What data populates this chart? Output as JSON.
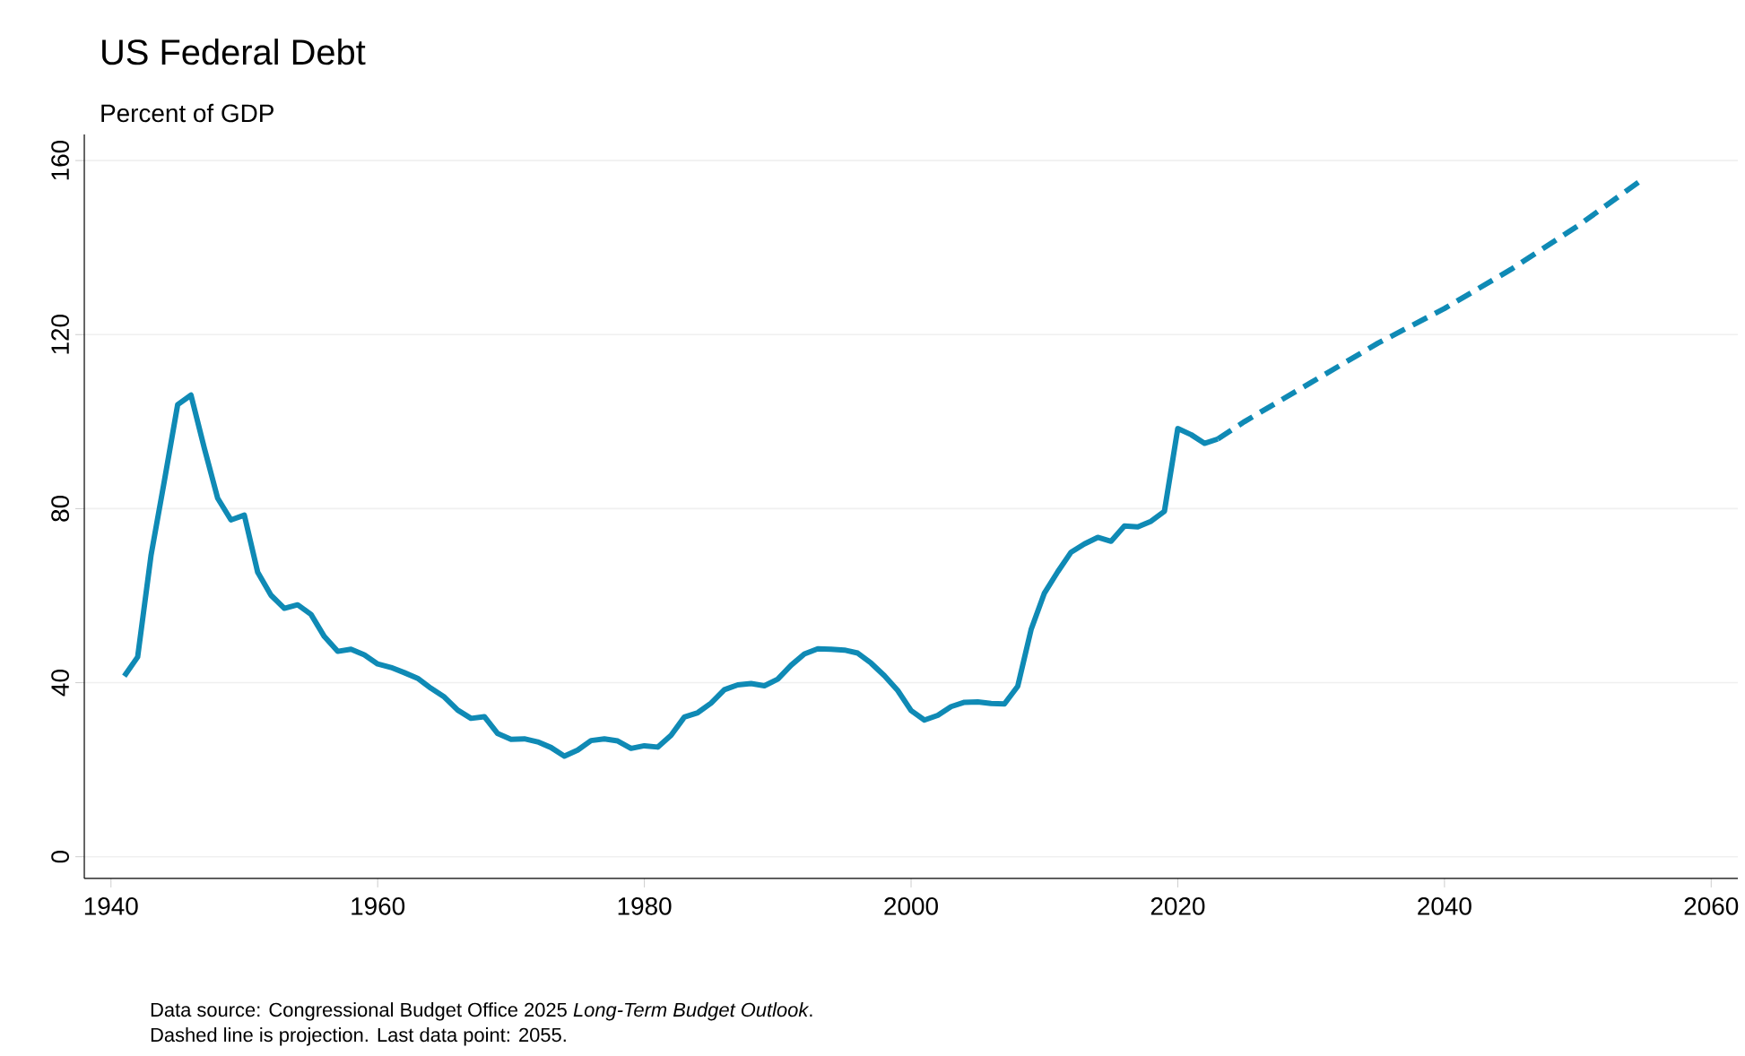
{
  "chart_data": {
    "type": "line",
    "title": "US Federal Debt",
    "subtitle": "Percent of GDP",
    "annotations": [
      "Data source: Congressional Budget Office 2025 *Long-Term Budget Outlook*.",
      "Dashed line is projection. Last data point: 2055."
    ],
    "xlim": [
      1938,
      2062
    ],
    "ylim": [
      -5,
      166
    ],
    "xticks": [
      1940,
      1960,
      1980,
      2000,
      2020,
      2040,
      2060
    ],
    "yticks": [
      0,
      40,
      80,
      120,
      160
    ],
    "grid": "y",
    "series": [
      {
        "color": "#0f8ab5",
        "line_style": "solid",
        "x": [
          1941,
          1942,
          1943,
          1944,
          1945,
          1946,
          1947,
          1948,
          1949,
          1950,
          1951,
          1952,
          1953,
          1954,
          1955,
          1956,
          1957,
          1958,
          1959,
          1960,
          1961,
          1962,
          1963,
          1964,
          1965,
          1966,
          1967,
          1968,
          1969,
          1970,
          1971,
          1972,
          1973,
          1974,
          1975,
          1976,
          1977,
          1978,
          1979,
          1980,
          1981,
          1982,
          1983,
          1984,
          1985,
          1986,
          1987,
          1988,
          1989,
          1990,
          1991,
          1992,
          1993,
          1994,
          1995,
          1996,
          1997,
          1998,
          1999,
          2000,
          2001,
          2002,
          2003,
          2004,
          2005,
          2006,
          2007,
          2008,
          2009,
          2010,
          2011,
          2012,
          2013,
          2014,
          2015,
          2016,
          2017,
          2018,
          2019,
          2020,
          2021,
          2022,
          2023
        ],
        "values": [
          41.5,
          45.9,
          69.2,
          86.3,
          103.9,
          106.1,
          93.9,
          82.4,
          77.4,
          78.5,
          65.4,
          60.1,
          57.1,
          57.9,
          55.7,
          50.6,
          47.2,
          47.7,
          46.4,
          44.3,
          43.5,
          42.3,
          41.0,
          38.7,
          36.7,
          33.7,
          31.8,
          32.2,
          28.3,
          27.0,
          27.1,
          26.4,
          25.1,
          23.1,
          24.5,
          26.7,
          27.1,
          26.6,
          24.9,
          25.5,
          25.2,
          27.9,
          32.1,
          33.1,
          35.3,
          38.4,
          39.5,
          39.8,
          39.3,
          40.8,
          44.0,
          46.6,
          47.8,
          47.7,
          47.5,
          46.8,
          44.5,
          41.6,
          38.2,
          33.6,
          31.4,
          32.5,
          34.5,
          35.5,
          35.6,
          35.2,
          35.1,
          39.2,
          52.2,
          60.6,
          65.5,
          70.0,
          71.9,
          73.4,
          72.5,
          76.0,
          75.8,
          77.1,
          79.4,
          98.4,
          97.0,
          95.0,
          96.0
        ]
      },
      {
        "color": "#0f8ab5",
        "line_style": "dashed",
        "x": [
          2023,
          2024,
          2025,
          2030,
          2035,
          2040,
          2045,
          2050,
          2055
        ],
        "values": [
          96.0,
          98.0,
          100.0,
          109.0,
          118.0,
          126.0,
          135.0,
          145.0,
          156.0
        ]
      }
    ]
  }
}
